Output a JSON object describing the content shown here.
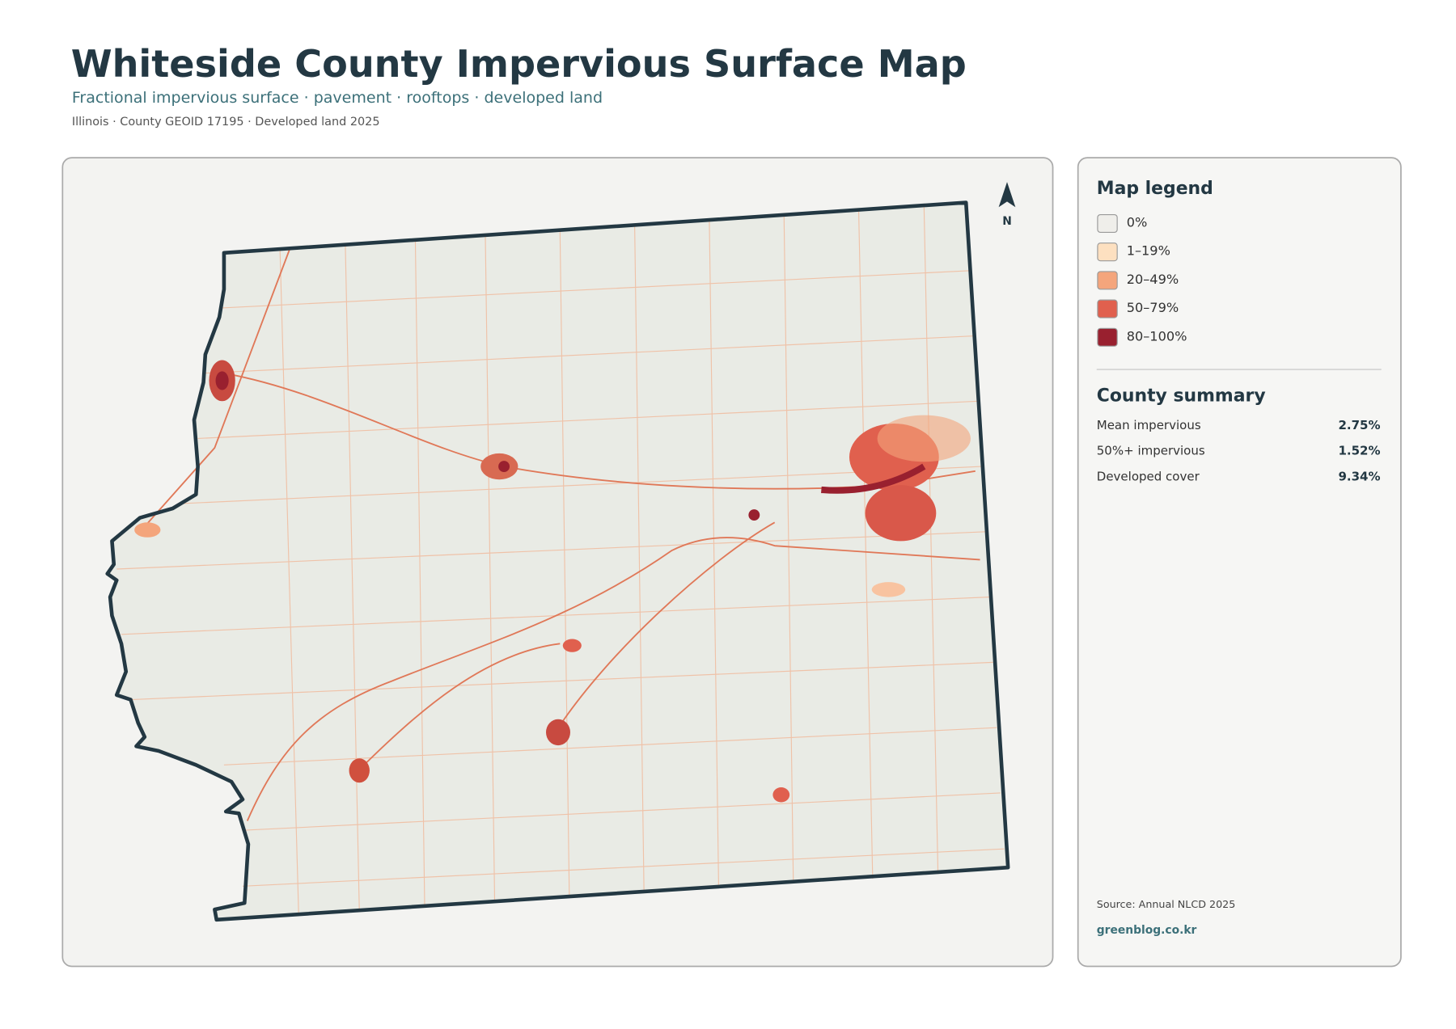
{
  "header": {
    "title": "Whiteside County Impervious Surface Map",
    "subtitle": "Fractional impervious surface · pavement · rooftops · developed land",
    "meta": "Illinois · County GEOID 17195 · Developed land 2025"
  },
  "map": {
    "north_label": "N"
  },
  "legend": {
    "title": "Map legend",
    "items": [
      {
        "label": "0%",
        "color": "#efeeea"
      },
      {
        "label": "1–19%",
        "color": "#fde0c0"
      },
      {
        "label": "20–49%",
        "color": "#f4a57c"
      },
      {
        "label": "50–79%",
        "color": "#e0604e"
      },
      {
        "label": "80–100%",
        "color": "#99202f"
      }
    ]
  },
  "summary": {
    "title": "County summary",
    "rows": [
      {
        "label": "Mean impervious",
        "value": "2.75%"
      },
      {
        "label": "50%+ impervious",
        "value": "1.52%"
      },
      {
        "label": "Developed cover",
        "value": "9.34%"
      }
    ]
  },
  "footer": {
    "source": "Source: Annual NLCD 2025",
    "credit": "greenblog.co.kr"
  }
}
